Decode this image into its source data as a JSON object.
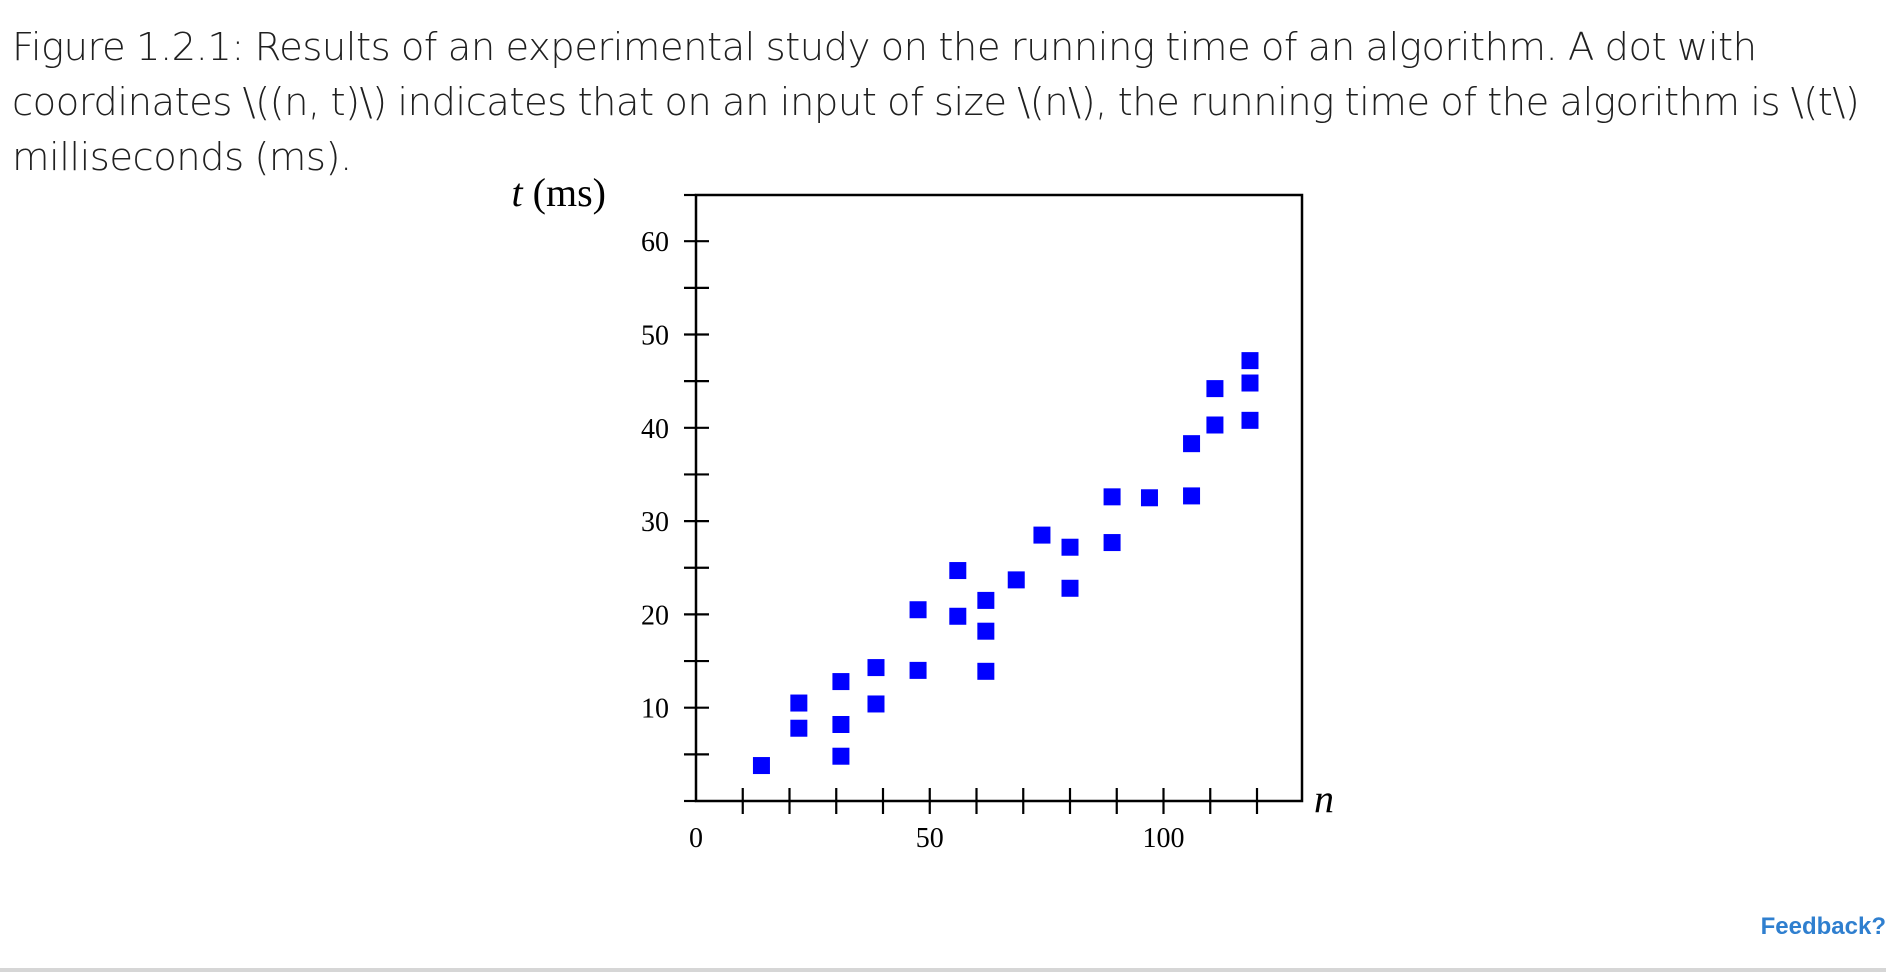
{
  "caption": "Figure 1.2.1: Results of an experimental study on the running time of an algorithm. A dot with coordinates \\((n, t)\\) indicates that on an input of size \\(n\\), the running time of the algorithm is \\(t\\) milliseconds (ms).",
  "feedback_label": "Feedback?",
  "chart_data": {
    "type": "scatter",
    "title": "",
    "xlabel": "n",
    "ylabel_var": "t",
    "ylabel_unit": " (ms)",
    "xlim": [
      0,
      130
    ],
    "ylim": [
      0,
      65
    ],
    "x_ticks_labeled": [
      0,
      50,
      100
    ],
    "x_tick_step": 10,
    "y_ticks_labeled": [
      10,
      20,
      30,
      40,
      50,
      60
    ],
    "y_tick_step": 5,
    "marker": "square",
    "marker_color": "#0000ff",
    "series": [
      {
        "points": [
          {
            "x": 14,
            "y": 3.8
          },
          {
            "x": 22,
            "y": 10.5
          },
          {
            "x": 22,
            "y": 7.8
          },
          {
            "x": 31,
            "y": 12.8
          },
          {
            "x": 31,
            "y": 8.2
          },
          {
            "x": 31,
            "y": 4.8
          },
          {
            "x": 38.5,
            "y": 14.3
          },
          {
            "x": 38.5,
            "y": 10.4
          },
          {
            "x": 47.5,
            "y": 20.5
          },
          {
            "x": 47.5,
            "y": 14.0
          },
          {
            "x": 56,
            "y": 24.7
          },
          {
            "x": 56,
            "y": 19.8
          },
          {
            "x": 62,
            "y": 21.5
          },
          {
            "x": 62,
            "y": 18.2
          },
          {
            "x": 62,
            "y": 13.9
          },
          {
            "x": 68.5,
            "y": 23.7
          },
          {
            "x": 74,
            "y": 28.5
          },
          {
            "x": 80,
            "y": 27.2
          },
          {
            "x": 80,
            "y": 22.8
          },
          {
            "x": 89,
            "y": 32.6
          },
          {
            "x": 89,
            "y": 27.7
          },
          {
            "x": 97,
            "y": 32.5
          },
          {
            "x": 106,
            "y": 32.7
          },
          {
            "x": 106,
            "y": 38.3
          },
          {
            "x": 111,
            "y": 44.2
          },
          {
            "x": 111,
            "y": 40.3
          },
          {
            "x": 118.5,
            "y": 47.2
          },
          {
            "x": 118.5,
            "y": 44.8
          },
          {
            "x": 118.5,
            "y": 40.8
          }
        ]
      }
    ]
  }
}
